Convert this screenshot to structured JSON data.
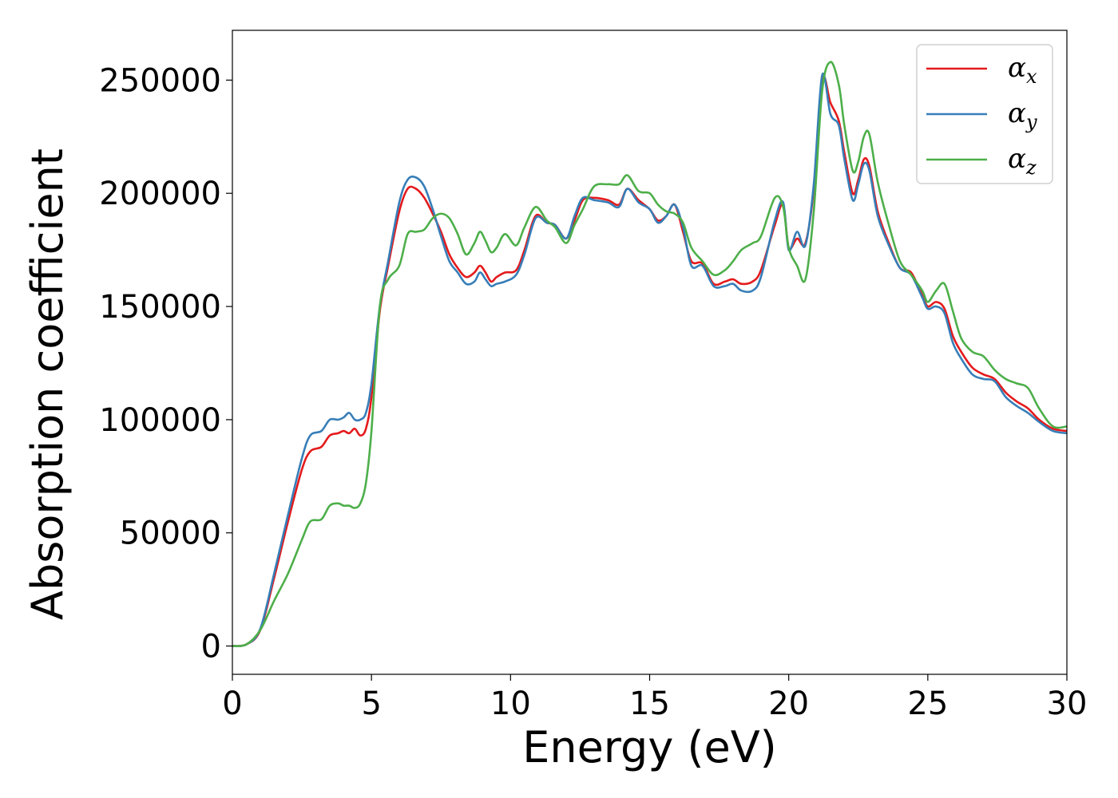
{
  "chart_data": {
    "type": "line",
    "title": "",
    "xlabel": "Energy (eV)",
    "ylabel": "Absorption coefficient",
    "xlim": [
      0,
      30
    ],
    "ylim": [
      -12500,
      272000
    ],
    "xticks": [
      0,
      5,
      10,
      15,
      20,
      25,
      30
    ],
    "yticks": [
      0,
      50000,
      100000,
      150000,
      200000,
      250000
    ],
    "grid": false,
    "legend_position": "top-right",
    "series": [
      {
        "name": "α",
        "subscript": "x",
        "color": "#e41a1c",
        "x": [
          0,
          0.5,
          1,
          1.5,
          2,
          2.5,
          2.8,
          3.2,
          3.5,
          3.8,
          4,
          4.2,
          4.4,
          4.6,
          4.8,
          5,
          5.3,
          5.6,
          6,
          6.3,
          6.6,
          6.9,
          7.2,
          7.5,
          7.8,
          8.1,
          8.4,
          8.7,
          8.9,
          9.1,
          9.3,
          9.5,
          9.8,
          10.2,
          10.5,
          10.9,
          11.3,
          11.6,
          12,
          12.3,
          12.6,
          13,
          13.5,
          13.9,
          14.2,
          14.6,
          15,
          15.3,
          15.6,
          15.9,
          16.2,
          16.5,
          16.9,
          17.3,
          17.7,
          18,
          18.3,
          18.7,
          19,
          19.5,
          19.8,
          20,
          20.3,
          20.6,
          20.9,
          21.2,
          21.5,
          21.8,
          22,
          22.3,
          22.5,
          22.7,
          22.9,
          23.2,
          23.6,
          24,
          24.4,
          24.8,
          25,
          25.3,
          25.6,
          25.9,
          26.2,
          26.6,
          27,
          27.4,
          27.8,
          28.2,
          28.6,
          29,
          29.5,
          30
        ],
        "y": [
          0,
          700,
          7000,
          30000,
          55000,
          78000,
          86000,
          88000,
          93000,
          94000,
          95000,
          94000,
          96000,
          93000,
          96000,
          110000,
          148000,
          168000,
          192000,
          202000,
          202000,
          198000,
          191000,
          183000,
          173000,
          167000,
          163000,
          165000,
          168000,
          165000,
          161000,
          163000,
          165000,
          166000,
          175000,
          190000,
          187000,
          186000,
          180000,
          188000,
          197000,
          198000,
          197000,
          195000,
          202000,
          197000,
          193000,
          188000,
          190000,
          195000,
          183000,
          170000,
          169000,
          160000,
          161000,
          162000,
          160000,
          161000,
          166000,
          186000,
          195000,
          176000,
          180000,
          178000,
          202000,
          250000,
          240000,
          232000,
          218000,
          200000,
          206000,
          215000,
          212000,
          192000,
          178000,
          167000,
          165000,
          155000,
          150000,
          152000,
          149000,
          137000,
          130000,
          123000,
          120000,
          118000,
          112000,
          108000,
          105000,
          100000,
          96000,
          95000
        ]
      },
      {
        "name": "α",
        "subscript": "y",
        "color": "#377eb8",
        "x": [
          0,
          0.5,
          1,
          1.5,
          2,
          2.5,
          2.8,
          3.2,
          3.5,
          3.8,
          4,
          4.2,
          4.4,
          4.6,
          4.8,
          5,
          5.3,
          5.6,
          6,
          6.3,
          6.6,
          6.9,
          7.2,
          7.5,
          7.8,
          8.1,
          8.4,
          8.7,
          8.9,
          9.1,
          9.3,
          9.5,
          9.8,
          10.2,
          10.5,
          10.9,
          11.3,
          11.6,
          12,
          12.3,
          12.6,
          13,
          13.5,
          13.9,
          14.2,
          14.6,
          15,
          15.3,
          15.6,
          15.9,
          16.2,
          16.5,
          16.9,
          17.3,
          17.7,
          18,
          18.3,
          18.7,
          19,
          19.5,
          19.8,
          20,
          20.3,
          20.6,
          20.9,
          21.2,
          21.5,
          21.8,
          22,
          22.3,
          22.5,
          22.7,
          22.9,
          23.2,
          23.6,
          24,
          24.4,
          24.8,
          25,
          25.3,
          25.6,
          25.9,
          26.2,
          26.6,
          27,
          27.4,
          27.8,
          28.2,
          28.6,
          29,
          29.5,
          30
        ],
        "y": [
          0,
          700,
          7500,
          32000,
          58000,
          83000,
          93000,
          95000,
          100000,
          100000,
          101000,
          103000,
          100000,
          100000,
          103000,
          116000,
          150000,
          170000,
          196000,
          206000,
          207000,
          203000,
          193000,
          181000,
          170000,
          165000,
          160000,
          161000,
          165000,
          162000,
          159000,
          160000,
          161000,
          164000,
          173000,
          189000,
          187000,
          186000,
          180000,
          190000,
          198000,
          197000,
          196000,
          194000,
          202000,
          196000,
          193000,
          187000,
          190000,
          195000,
          185000,
          168000,
          168000,
          159000,
          159000,
          160000,
          157000,
          157000,
          163000,
          188000,
          196000,
          175000,
          183000,
          177000,
          204000,
          252000,
          235000,
          230000,
          215000,
          197000,
          204000,
          213000,
          210000,
          190000,
          177000,
          167000,
          164000,
          154000,
          149000,
          150000,
          147000,
          134000,
          127000,
          120000,
          118000,
          117000,
          110000,
          106000,
          103000,
          99000,
          95000,
          94000
        ]
      },
      {
        "name": "α",
        "subscript": "z",
        "color": "#4daf4a",
        "x": [
          0,
          0.5,
          1,
          1.5,
          2,
          2.5,
          2.8,
          3.2,
          3.5,
          3.8,
          4,
          4.2,
          4.4,
          4.6,
          4.8,
          5,
          5.3,
          5.6,
          6,
          6.3,
          6.6,
          6.9,
          7.2,
          7.5,
          7.8,
          8.1,
          8.4,
          8.7,
          8.9,
          9.1,
          9.3,
          9.5,
          9.8,
          10.2,
          10.5,
          10.9,
          11.3,
          11.6,
          12,
          12.3,
          12.6,
          13,
          13.5,
          13.9,
          14.2,
          14.6,
          15,
          15.3,
          15.6,
          15.9,
          16.2,
          16.5,
          16.9,
          17.3,
          17.7,
          18,
          18.3,
          18.7,
          19,
          19.5,
          19.8,
          20,
          20.3,
          20.6,
          20.9,
          21.2,
          21.5,
          21.8,
          22,
          22.3,
          22.5,
          22.7,
          22.9,
          23.2,
          23.6,
          24,
          24.4,
          24.8,
          25,
          25.3,
          25.6,
          25.9,
          26.2,
          26.6,
          27,
          27.4,
          27.8,
          28.2,
          28.6,
          29,
          29.5,
          30
        ],
        "y": [
          0,
          700,
          7000,
          20000,
          32000,
          47000,
          55000,
          56000,
          62000,
          63000,
          62000,
          62000,
          61000,
          63000,
          72000,
          95000,
          150000,
          162000,
          168000,
          182000,
          183000,
          184000,
          189000,
          191000,
          189000,
          182000,
          173000,
          178000,
          183000,
          179000,
          174000,
          176000,
          182000,
          177000,
          185000,
          194000,
          188000,
          185000,
          178000,
          186000,
          193000,
          203000,
          204000,
          204000,
          208000,
          201000,
          200000,
          195000,
          192000,
          191000,
          187000,
          176000,
          170000,
          164000,
          166000,
          170000,
          175000,
          178000,
          181000,
          198000,
          194000,
          176000,
          168000,
          162000,
          192000,
          245000,
          258000,
          248000,
          230000,
          210000,
          214000,
          225000,
          226000,
          205000,
          186000,
          170000,
          164000,
          157000,
          152000,
          157000,
          160000,
          148000,
          136000,
          130000,
          128000,
          122000,
          118000,
          116000,
          114000,
          105000,
          97000,
          97000
        ]
      }
    ]
  }
}
